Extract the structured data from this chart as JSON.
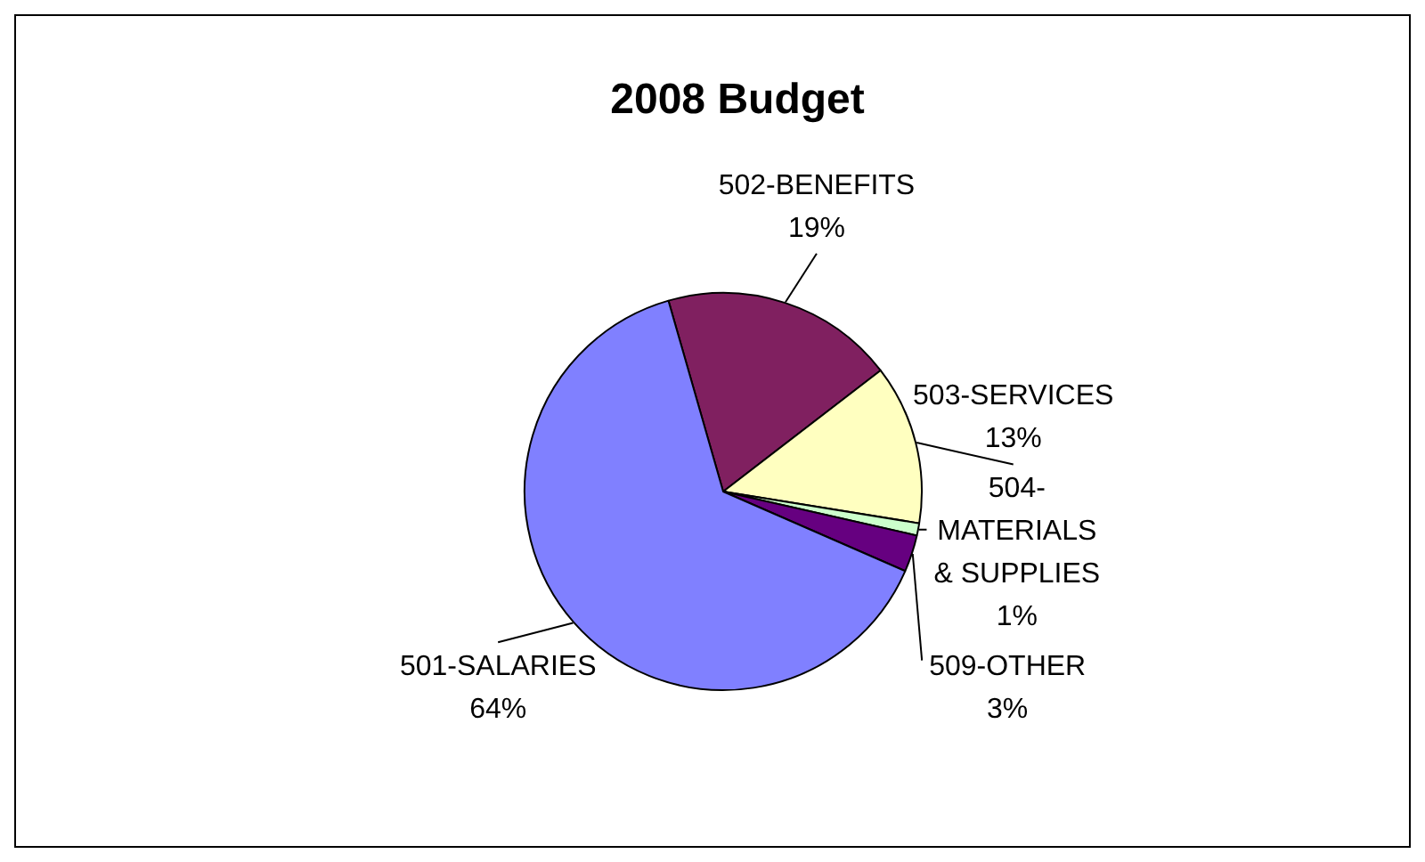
{
  "chart_data": {
    "type": "pie",
    "title": "2008 Budget",
    "categories": [
      "502-BENEFITS",
      "503-SERVICES",
      "504-MATERIALS & SUPPLIES",
      "509-OTHER",
      "501-SALARIES"
    ],
    "values": [
      19,
      13,
      1,
      3,
      64
    ],
    "value_labels": [
      "19%",
      "13%",
      "1%",
      "3%",
      "64%"
    ],
    "colors": [
      "#802060",
      "#ffffc0",
      "#ccffcc",
      "#660080",
      "#8080ff"
    ],
    "legend": false
  }
}
